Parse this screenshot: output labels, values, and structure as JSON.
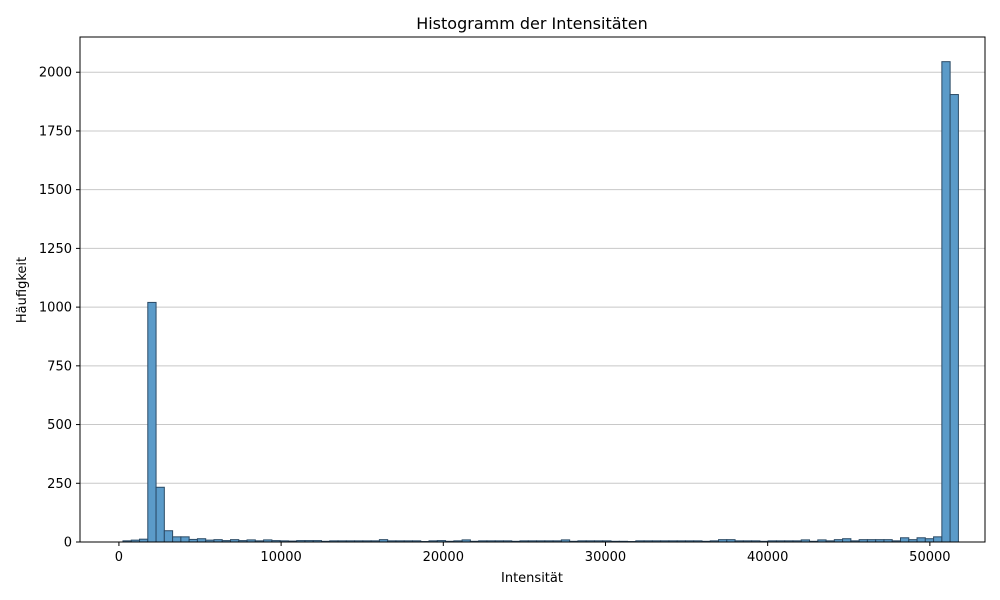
{
  "chart_data": {
    "type": "bar",
    "title": "Histogramm der Intensitäten",
    "xlabel": "Intensität",
    "ylabel": "Häufigkeit",
    "xlim": [
      -2400,
      53400
    ],
    "ylim": [
      0,
      2150
    ],
    "xticks": [
      0,
      10000,
      20000,
      30000,
      40000,
      50000
    ],
    "yticks": [
      0,
      250,
      500,
      750,
      1000,
      1250,
      1500,
      1750,
      2000
    ],
    "grid": "y",
    "bar_color": "#5b9bc9",
    "edge_color": "#2a4a66",
    "bin_width": 510,
    "bin_start": 250,
    "values": [
      5,
      8,
      12,
      1020,
      233,
      48,
      22,
      22,
      11,
      14,
      8,
      10,
      6,
      10,
      6,
      9,
      5,
      9,
      6,
      5,
      4,
      6,
      6,
      6,
      3,
      5,
      5,
      5,
      5,
      5,
      5,
      10,
      5,
      5,
      5,
      5,
      2,
      5,
      6,
      3,
      5,
      9,
      3,
      5,
      5,
      5,
      5,
      3,
      5,
      5,
      5,
      5,
      5,
      9,
      3,
      5,
      5,
      5,
      5,
      3,
      3,
      2,
      5,
      5,
      5,
      5,
      5,
      5,
      5,
      5,
      3,
      5,
      10,
      10,
      5,
      5,
      5,
      3,
      5,
      5,
      5,
      5,
      9,
      3,
      9,
      5,
      10,
      14,
      5,
      10,
      10,
      10,
      10,
      5,
      18,
      10,
      18,
      14,
      22,
      2045,
      1905
    ]
  }
}
